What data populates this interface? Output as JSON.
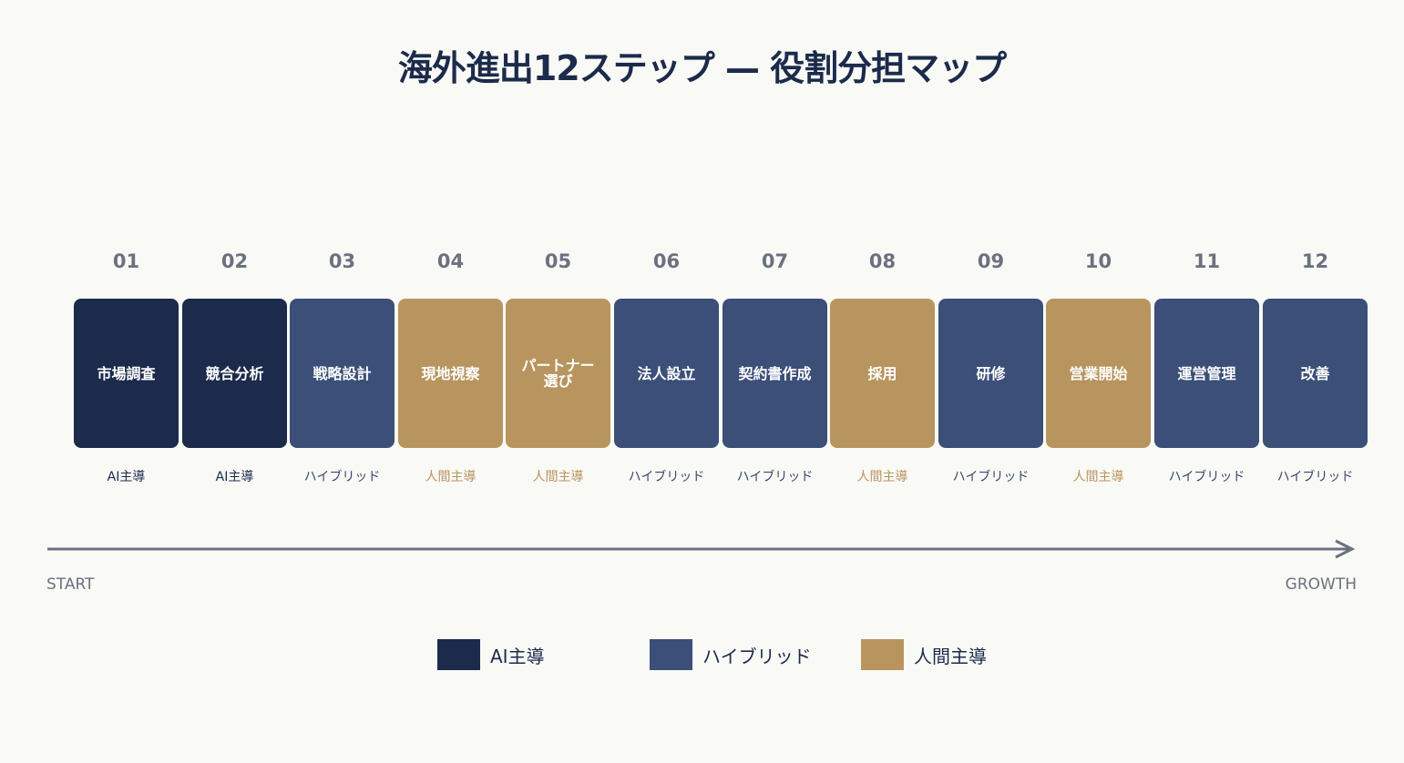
{
  "title": "海外進出12ステップ — 役割分担マップ",
  "colors": {
    "ai": "#1c2b4b",
    "hybrid": "#3b4f78",
    "human": "#b8955e",
    "ai_text": "#1c2b4b",
    "hybrid_text": "#3b4a6b",
    "human_text": "#b8955e"
  },
  "steps": [
    {
      "num": "01",
      "label": "市場調査",
      "role": "AI主導",
      "type": "ai"
    },
    {
      "num": "02",
      "label": "競合分析",
      "role": "AI主導",
      "type": "ai"
    },
    {
      "num": "03",
      "label": "戦略設計",
      "role": "ハイブリッド",
      "type": "hybrid"
    },
    {
      "num": "04",
      "label": "現地視察",
      "role": "人間主導",
      "type": "human"
    },
    {
      "num": "05",
      "label": "パートナー\n選び",
      "role": "人間主導",
      "type": "human"
    },
    {
      "num": "06",
      "label": "法人設立",
      "role": "ハイブリッド",
      "type": "hybrid"
    },
    {
      "num": "07",
      "label": "契約書作成",
      "role": "ハイブリッド",
      "type": "hybrid"
    },
    {
      "num": "08",
      "label": "採用",
      "role": "人間主導",
      "type": "human"
    },
    {
      "num": "09",
      "label": "研修",
      "role": "ハイブリッド",
      "type": "hybrid"
    },
    {
      "num": "10",
      "label": "営業開始",
      "role": "人間主導",
      "type": "human"
    },
    {
      "num": "11",
      "label": "運営管理",
      "role": "ハイブリッド",
      "type": "hybrid"
    },
    {
      "num": "12",
      "label": "改善",
      "role": "ハイブリッド",
      "type": "hybrid"
    }
  ],
  "axis": {
    "start": "START",
    "end": "GROWTH"
  },
  "legend": [
    {
      "label": "AI主導",
      "type": "ai"
    },
    {
      "label": "ハイブリッド",
      "type": "hybrid"
    },
    {
      "label": "人間主導",
      "type": "human"
    }
  ]
}
